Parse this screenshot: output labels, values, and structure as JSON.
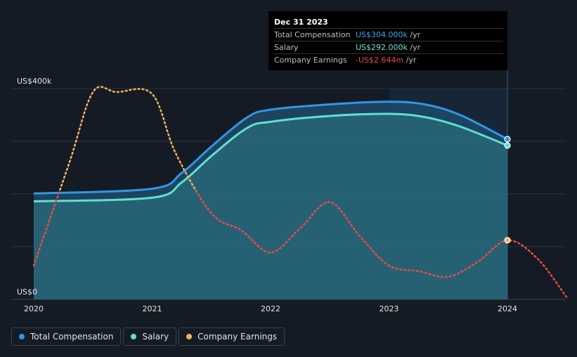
{
  "colors": {
    "background": "#151b24",
    "total_compensation": "#2f97e6",
    "salary": "#5fe0d0",
    "company_earnings": "#f2b35e",
    "earnings_negative": "#e84a4a",
    "grid": "#2c3340"
  },
  "tooltip": {
    "date": "Dec 31 2023",
    "rows": [
      {
        "label": "Total Compensation",
        "value": "US$304.000k",
        "unit": " /yr",
        "color": "#3aa6f0"
      },
      {
        "label": "Salary",
        "value": "US$292.000k",
        "unit": " /yr",
        "color": "#6fe7d5"
      },
      {
        "label": "Company Earnings",
        "value": "-US$2.644m",
        "unit": " /yr",
        "color": "#f04848"
      }
    ]
  },
  "legend": [
    {
      "label": "Total Compensation",
      "icon": "circle-icon",
      "color": "#2f97e6"
    },
    {
      "label": "Salary",
      "icon": "circle-icon",
      "color": "#5fe0d0"
    },
    {
      "label": "Company Earnings",
      "icon": "circle-icon",
      "color": "#f2b35e"
    }
  ],
  "chart_data": {
    "type": "line",
    "title": "",
    "xlabel": "",
    "ylabel": "",
    "ylim": [
      0,
      400
    ],
    "xlim": [
      2020.0,
      2024.5
    ],
    "y_tick_labels": [
      {
        "value": 400,
        "label": "US$400k"
      },
      {
        "value": 0,
        "label": "US$0"
      }
    ],
    "x_tick_labels": [
      {
        "value": 2020,
        "label": "2020"
      },
      {
        "value": 2021,
        "label": "2021"
      },
      {
        "value": 2022,
        "label": "2022"
      },
      {
        "value": 2023,
        "label": "2023"
      },
      {
        "value": 2024,
        "label": "2024"
      }
    ],
    "highlight_range": [
      2023.0,
      2024.0
    ],
    "series": [
      {
        "name": "Total Compensation",
        "unit": "US$k",
        "x": [
          2020.0,
          2021.0,
          2021.25,
          2021.5,
          2021.8,
          2022.0,
          2022.5,
          2023.0,
          2023.3,
          2023.6,
          2024.0
        ],
        "values": [
          201,
          210,
          240,
          290,
          345,
          360,
          370,
          375,
          370,
          350,
          304
        ]
      },
      {
        "name": "Salary",
        "unit": "US$k",
        "x": [
          2020.0,
          2021.0,
          2021.25,
          2021.5,
          2021.8,
          2022.0,
          2022.5,
          2023.0,
          2023.3,
          2023.6,
          2024.0
        ],
        "values": [
          186,
          193,
          222,
          272,
          325,
          337,
          348,
          352,
          346,
          328,
          292
        ]
      },
      {
        "name": "Company Earnings",
        "unit": "US$m",
        "x": [
          2020.0,
          2020.3,
          2020.5,
          2020.7,
          2021.0,
          2021.2,
          2021.5,
          2021.75,
          2022.0,
          2022.25,
          2022.5,
          2022.75,
          2023.0,
          2023.25,
          2023.5,
          2023.75,
          2024.0,
          2024.25,
          2024.5
        ],
        "values": [
          -4.0,
          1.5,
          5.3,
          5.3,
          5.2,
          2.0,
          -1.2,
          -2.1,
          -3.3,
          -2.0,
          -0.6,
          -2.4,
          -4.0,
          -4.3,
          -4.6,
          -3.8,
          -2.644,
          -3.6,
          -5.7
        ],
        "positive_above": 0
      }
    ]
  }
}
